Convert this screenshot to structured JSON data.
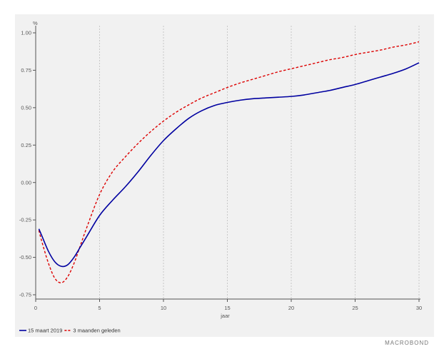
{
  "chart_data": {
    "type": "line",
    "title": "",
    "ylabel_unit": "%",
    "xlabel": "jaar",
    "xlim": [
      0,
      30
    ],
    "ylim": [
      -0.75,
      1.0
    ],
    "x_ticks": [
      0,
      5,
      10,
      15,
      20,
      25,
      30
    ],
    "x_tick_labels": [
      "0",
      "5",
      "10",
      "15",
      "20",
      "25",
      "30"
    ],
    "y_ticks": [
      -0.75,
      -0.5,
      -0.25,
      0,
      0.25,
      0.5,
      0.75,
      1.0
    ],
    "y_tick_labels": [
      "-0.75",
      "-0.50",
      "-0.25",
      "0.00",
      "0.25",
      "0.50",
      "0.75",
      "1.00"
    ],
    "grid": "vertical",
    "legend_position": "bottom-left",
    "series": [
      {
        "name": "15 maart 2019",
        "color": "#0000a0",
        "style": "solid",
        "x": [
          0.25,
          0.5,
          1,
          1.5,
          2,
          2.5,
          3,
          3.5,
          4,
          5,
          6,
          7,
          8,
          9,
          10,
          11,
          12,
          13,
          14,
          15,
          16,
          17,
          18,
          19,
          20,
          21,
          22,
          23,
          24,
          25,
          26,
          27,
          28,
          29,
          30
        ],
        "y": [
          -0.31,
          -0.36,
          -0.46,
          -0.53,
          -0.56,
          -0.55,
          -0.5,
          -0.43,
          -0.36,
          -0.22,
          -0.12,
          -0.03,
          0.07,
          0.18,
          0.28,
          0.36,
          0.43,
          0.48,
          0.515,
          0.535,
          0.55,
          0.56,
          0.565,
          0.57,
          0.575,
          0.585,
          0.6,
          0.615,
          0.635,
          0.655,
          0.68,
          0.705,
          0.73,
          0.76,
          0.8
        ]
      },
      {
        "name": "3 maanden geleden",
        "color": "#dd0000",
        "style": "dashed",
        "x": [
          0.25,
          0.5,
          1,
          1.5,
          2,
          2.5,
          3,
          3.5,
          4,
          5,
          6,
          7,
          8,
          9,
          10,
          11,
          12,
          13,
          14,
          15,
          16,
          17,
          18,
          19,
          20,
          21,
          22,
          23,
          24,
          25,
          26,
          27,
          28,
          29,
          30
        ],
        "y": [
          -0.32,
          -0.4,
          -0.54,
          -0.64,
          -0.67,
          -0.63,
          -0.54,
          -0.42,
          -0.3,
          -0.08,
          0.07,
          0.17,
          0.26,
          0.34,
          0.41,
          0.47,
          0.52,
          0.565,
          0.6,
          0.635,
          0.665,
          0.69,
          0.715,
          0.74,
          0.76,
          0.78,
          0.8,
          0.82,
          0.835,
          0.855,
          0.87,
          0.885,
          0.905,
          0.92,
          0.94
        ]
      }
    ]
  },
  "brand": "MACROBOND"
}
